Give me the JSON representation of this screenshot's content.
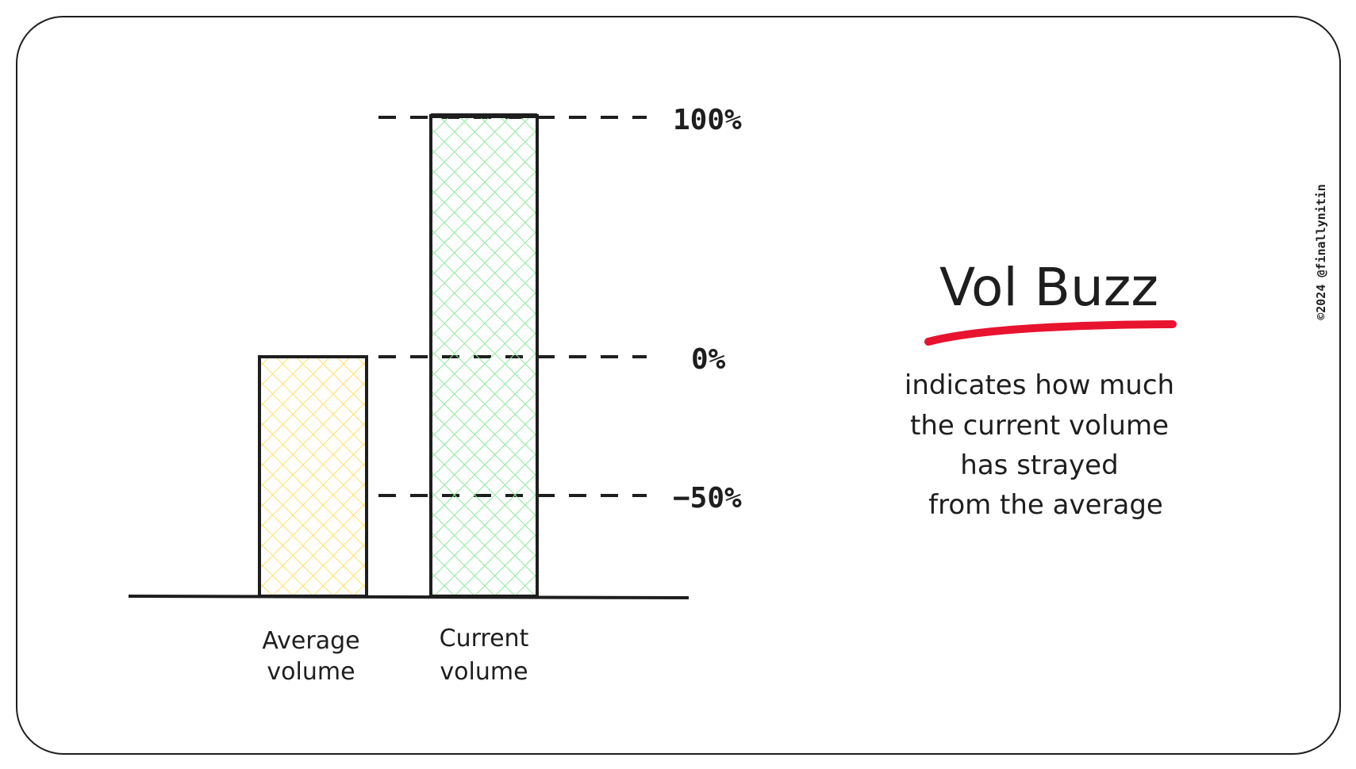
{
  "bars": [
    {
      "label_line1": "Average",
      "label_line2": "volume",
      "color": "#ffe066"
    },
    {
      "label_line1": "Current",
      "label_line2": "volume",
      "color": "#8ce99a"
    }
  ],
  "levels": [
    {
      "label": "100%"
    },
    {
      "label": "0%"
    },
    {
      "label": "−50%"
    }
  ],
  "title": "Vol Buzz",
  "underline_color": "#e8132f",
  "description": [
    "indicates how much",
    "the current volume",
    "has strayed",
    "from the average"
  ],
  "copyright": "©2024 @finallynitin"
}
